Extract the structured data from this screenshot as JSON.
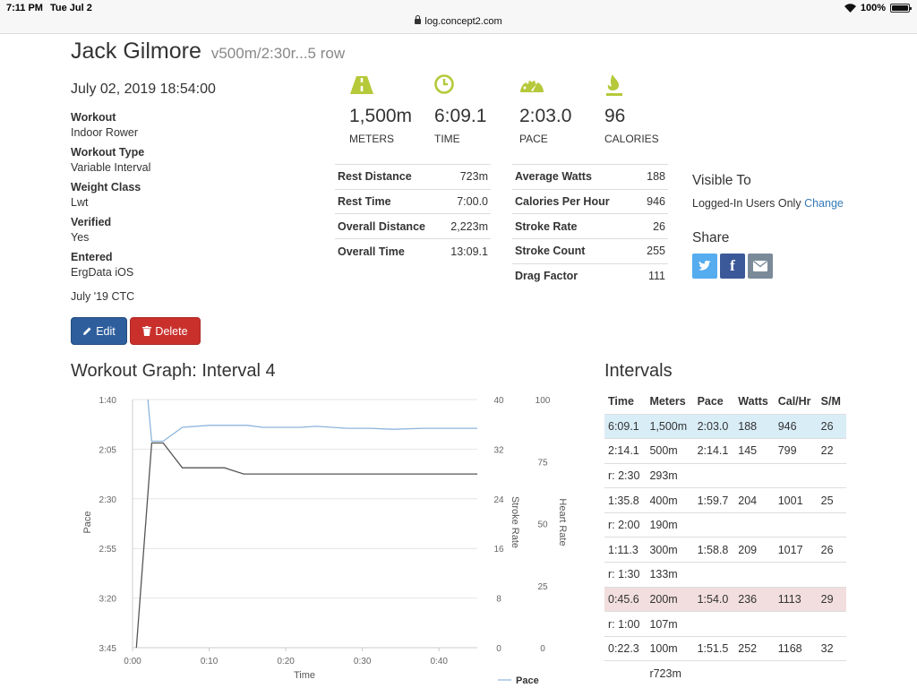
{
  "status_bar": {
    "time": "7:11 PM",
    "date": "Tue Jul 2",
    "url": "log.concept2.com",
    "battery": "100%"
  },
  "header": {
    "name": "Jack Gilmore",
    "workout_name": "v500m/2:30r...5 row"
  },
  "details": {
    "datetime": "July 02, 2019 18:54:00",
    "workout_label": "Workout",
    "workout_value": "Indoor Rower",
    "type_label": "Workout Type",
    "type_value": "Variable Interval",
    "weight_label": "Weight Class",
    "weight_value": "Lwt",
    "verified_label": "Verified",
    "verified_value": "Yes",
    "entered_label": "Entered",
    "entered_value": "ErgData iOS",
    "challenge": "July '19 CTC"
  },
  "buttons": {
    "edit": "Edit",
    "delete": "Delete"
  },
  "stats": {
    "meters_value": "1,500m",
    "meters_caption": "METERS",
    "time_value": "6:09.1",
    "time_caption": "TIME",
    "pace_value": "2:03.0",
    "pace_caption": "PACE",
    "calories_value": "96",
    "calories_caption": "CALORIES"
  },
  "summary_left": [
    {
      "label": "Rest Distance",
      "value": "723m"
    },
    {
      "label": "Rest Time",
      "value": "7:00.0"
    },
    {
      "label": "Overall Distance",
      "value": "2,223m"
    },
    {
      "label": "Overall Time",
      "value": "13:09.1"
    }
  ],
  "summary_right": [
    {
      "label": "Average Watts",
      "value": "188"
    },
    {
      "label": "Calories Per Hour",
      "value": "946"
    },
    {
      "label": "Stroke Rate",
      "value": "26"
    },
    {
      "label": "Stroke Count",
      "value": "255"
    },
    {
      "label": "Drag Factor",
      "value": "111"
    }
  ],
  "visibility": {
    "title": "Visible To",
    "value": "Logged-In Users Only",
    "change_link": "Change"
  },
  "share": {
    "title": "Share"
  },
  "graph": {
    "title": "Workout Graph: Interval 4"
  },
  "chart_data": {
    "type": "line",
    "xlabel": "Time",
    "ylabel_left": "Pace",
    "ylabel_right1": "Stroke Rate",
    "ylabel_right2": "Heart Rate",
    "x_ticks": [
      "0:00",
      "0:10",
      "0:20",
      "0:30",
      "0:40"
    ],
    "pace_ticks": [
      "1:40",
      "2:05",
      "2:30",
      "2:55",
      "3:20",
      "3:45"
    ],
    "stroke_ticks": [
      "40",
      "32",
      "24",
      "16",
      "8",
      "0"
    ],
    "hr_ticks": [
      "100",
      "75",
      "50",
      "25",
      "0"
    ],
    "xlim": [
      0,
      45
    ],
    "pace_range_seconds": [
      100,
      225
    ],
    "stroke_range": [
      0,
      40
    ],
    "legend": "Pace",
    "legend_position": "bottom-right",
    "series": [
      {
        "name": "Pace",
        "color": "#8db5dc",
        "x": [
          2,
          2.5,
          4,
          6.5,
          10,
          15,
          17,
          22,
          24,
          28,
          31,
          34,
          38,
          42,
          45
        ],
        "y": [
          100,
          121,
          121,
          114,
          113,
          113,
          114,
          114,
          113.5,
          114.5,
          114.5,
          115,
          114.5,
          114.5,
          114.5
        ]
      },
      {
        "name": "Stroke Rate",
        "color": "#555555",
        "x": [
          0.5,
          2.5,
          4,
          6.5,
          12,
          14.5,
          20,
          30,
          40,
          45
        ],
        "y": [
          0,
          33,
          33,
          29,
          29,
          28,
          28,
          28,
          28,
          28
        ]
      }
    ]
  },
  "intervals": {
    "title": "Intervals",
    "columns": [
      "Time",
      "Meters",
      "Pace",
      "Watts",
      "Cal/Hr",
      "S/M"
    ],
    "rows": [
      {
        "cells": [
          "6:09.1",
          "1,500m",
          "2:03.0",
          "188",
          "946",
          "26"
        ],
        "highlight": "blue"
      },
      {
        "cells": [
          "2:14.1",
          "500m",
          "2:14.1",
          "145",
          "799",
          "22"
        ],
        "highlight": ""
      },
      {
        "cells": [
          "r: 2:30",
          "293m",
          "",
          "",
          "",
          ""
        ],
        "highlight": ""
      },
      {
        "cells": [
          "1:35.8",
          "400m",
          "1:59.7",
          "204",
          "1001",
          "25"
        ],
        "highlight": ""
      },
      {
        "cells": [
          "r: 2:00",
          "190m",
          "",
          "",
          "",
          ""
        ],
        "highlight": ""
      },
      {
        "cells": [
          "1:11.3",
          "300m",
          "1:58.8",
          "209",
          "1017",
          "26"
        ],
        "highlight": ""
      },
      {
        "cells": [
          "r: 1:30",
          "133m",
          "",
          "",
          "",
          ""
        ],
        "highlight": ""
      },
      {
        "cells": [
          "0:45.6",
          "200m",
          "1:54.0",
          "236",
          "1113",
          "29"
        ],
        "highlight": "red"
      },
      {
        "cells": [
          "r: 1:00",
          "107m",
          "",
          "",
          "",
          ""
        ],
        "highlight": ""
      },
      {
        "cells": [
          "0:22.3",
          "100m",
          "1:51.5",
          "252",
          "1168",
          "32"
        ],
        "highlight": ""
      },
      {
        "cells": [
          "",
          "r723m",
          "",
          "",
          "",
          ""
        ],
        "highlight": ""
      }
    ]
  }
}
